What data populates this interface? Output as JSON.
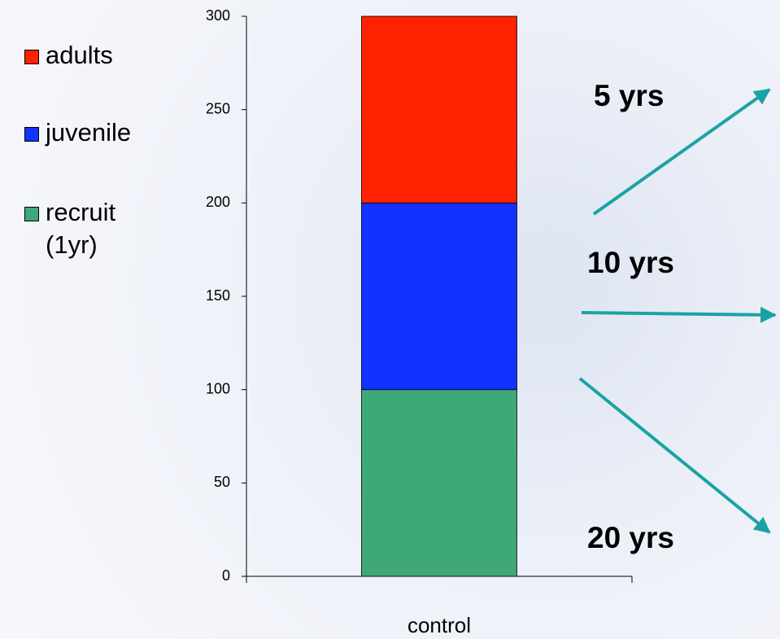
{
  "chart_data": {
    "type": "stacked_bar",
    "categories": [
      "control"
    ],
    "series": [
      {
        "name": "recruit (1yr)",
        "color": "#3fa878",
        "values": [
          100
        ]
      },
      {
        "name": "juvenile",
        "color": "#1133ff",
        "values": [
          100
        ]
      },
      {
        "name": "adults",
        "color": "#ff2200",
        "values": [
          100
        ]
      }
    ],
    "ylim": [
      0,
      300
    ],
    "yticks": [
      0,
      50,
      100,
      150,
      200,
      250,
      300
    ],
    "annotations": [
      "5 yrs",
      "10 yrs",
      "20 yrs"
    ],
    "arrow_color": "#1aa3a3"
  }
}
